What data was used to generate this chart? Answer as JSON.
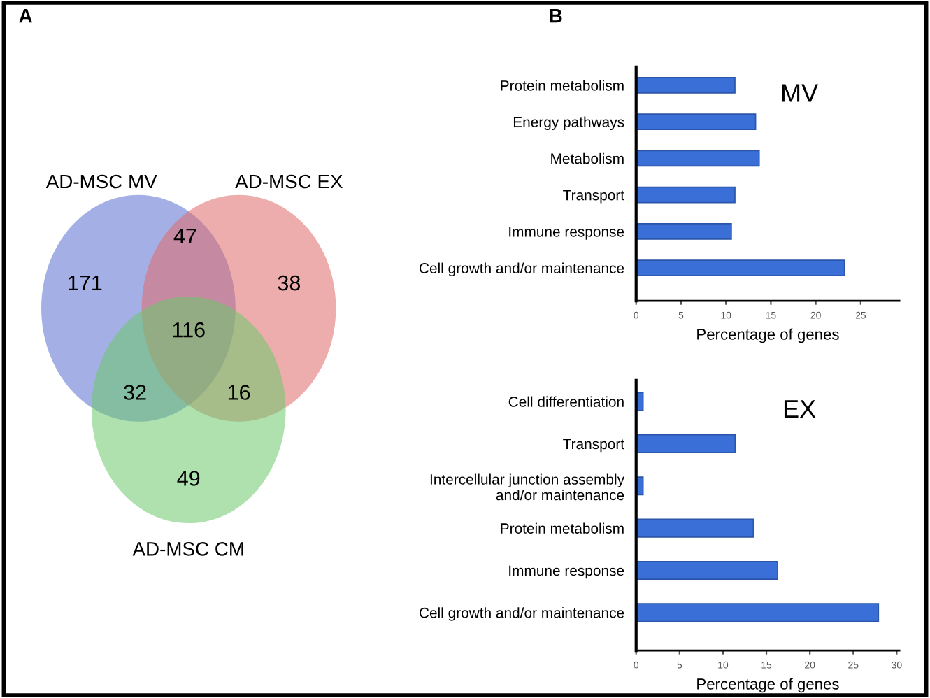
{
  "chart_data": [
    {
      "type": "other",
      "title": "A",
      "annotations": [
        "AD-MSC MV",
        "AD-MSC EX",
        "AD-MSC CM",
        "171",
        "47",
        "38",
        "116",
        "32",
        "16",
        "49"
      ]
    },
    {
      "type": "bar",
      "orientation": "horizontal",
      "title": "MV",
      "annotations": [
        "B"
      ],
      "categories": [
        "Protein metabolism",
        "Energy pathways",
        "Metabolism",
        "Transport",
        "Immune response",
        "Cell growth and/or maintenance"
      ],
      "values": [
        11,
        13.3,
        13.7,
        11,
        10.6,
        23.2
      ],
      "color": "#3a6fd8",
      "xlabel": "Percentage of genes",
      "xlim": [
        0,
        29.3
      ],
      "xticks": [
        0,
        5,
        10,
        15,
        20,
        25
      ],
      "grid": false
    },
    {
      "type": "bar",
      "orientation": "horizontal",
      "title": "EX",
      "categories": [
        "Cell differentiation",
        "Transport",
        "Intercellular junction assembly\nand/or maintenance",
        "Protein metabolism",
        "Immune response",
        "Cell growth and/or maintenance"
      ],
      "values": [
        0.8,
        11.4,
        0.8,
        13.5,
        16.3,
        27.9
      ],
      "color": "#3a6fd8",
      "xlabel": "Percentage of genes",
      "xlim": [
        0,
        30.3
      ],
      "xticks": [
        0,
        5,
        10,
        15,
        20,
        25,
        30
      ],
      "grid": false
    }
  ]
}
